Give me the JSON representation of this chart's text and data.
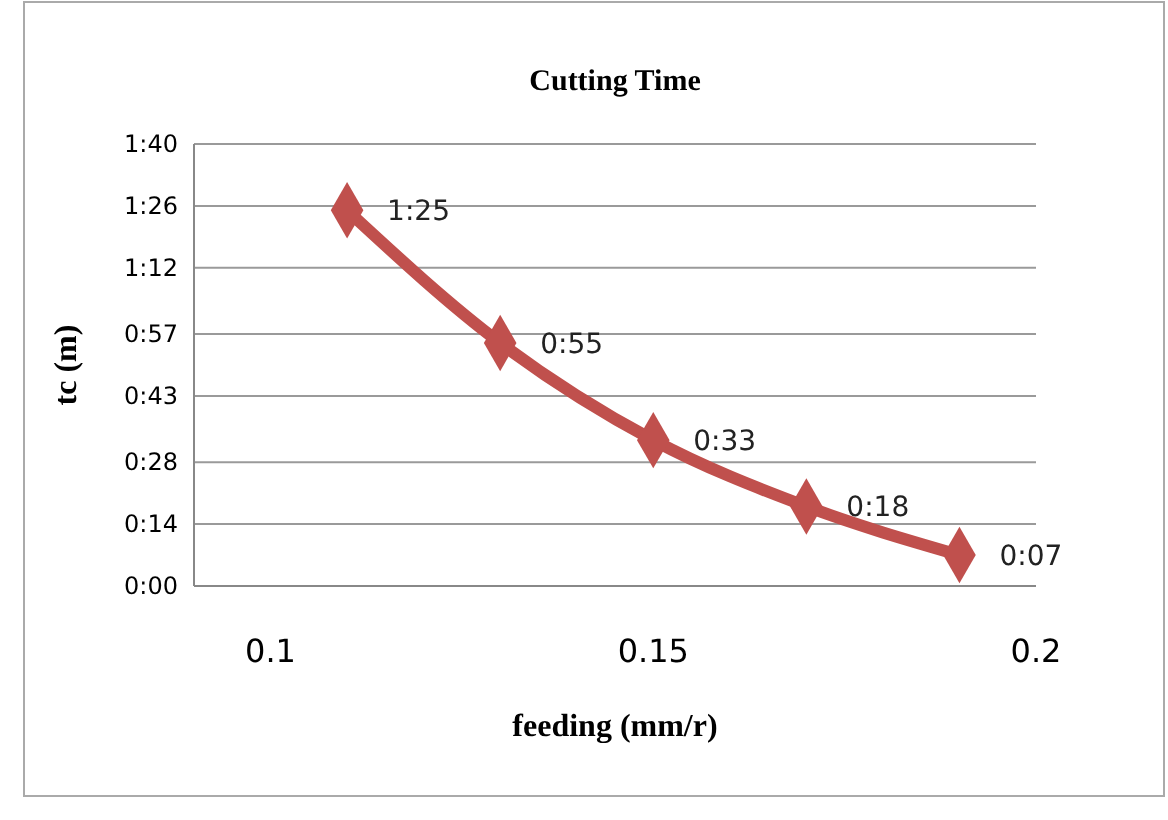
{
  "chart_data": {
    "type": "line",
    "title": "Cutting Time",
    "xlabel": "feeding (mm/r)",
    "ylabel": "tc (m)",
    "x": [
      0.11,
      0.13,
      0.15,
      0.17,
      0.19
    ],
    "series": [
      {
        "color": "#c0504d",
        "values": [
          85,
          55,
          33,
          18,
          7
        ],
        "value_labels": [
          "1:25",
          "0:55",
          "0:33",
          "0:18",
          "0:07"
        ]
      }
    ],
    "xlim": [
      0.09,
      0.2
    ],
    "xticks": [
      0.1,
      0.15,
      0.2
    ],
    "ylim": [
      0,
      100
    ],
    "yticks": [
      {
        "value": 0,
        "label": "0:00"
      },
      {
        "value": 14,
        "label": "0:14"
      },
      {
        "value": 28,
        "label": "0:28"
      },
      {
        "value": 43,
        "label": "0:43"
      },
      {
        "value": 57,
        "label": "0:57"
      },
      {
        "value": 72,
        "label": "1:12"
      },
      {
        "value": 86,
        "label": "1:26"
      },
      {
        "value": 100,
        "label": "1:40"
      }
    ],
    "grid": "y",
    "marker": "diamond",
    "line_style": "solid"
  }
}
